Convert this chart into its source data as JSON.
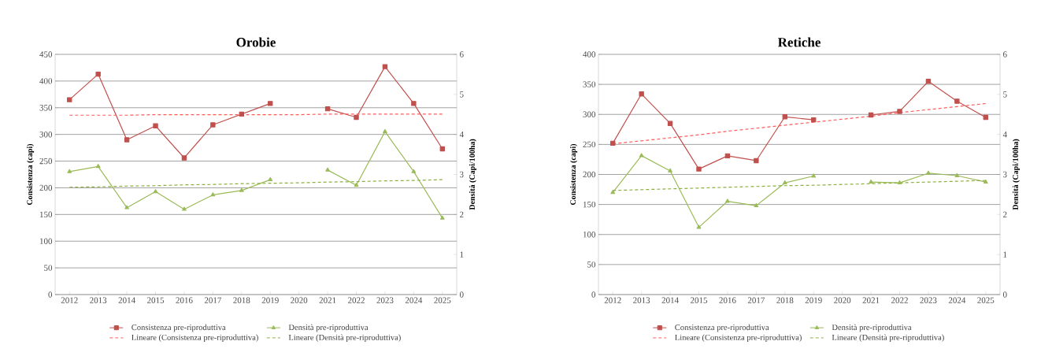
{
  "chart_data": [
    {
      "type": "line",
      "title": "Orobie",
      "ylabel": "Consistenza (capi)",
      "y2label": "Densità (Capi/100ha)",
      "x": [
        2012,
        2013,
        2014,
        2015,
        2016,
        2017,
        2018,
        2019,
        2020,
        2021,
        2022,
        2023,
        2024,
        2025
      ],
      "xlim": [
        2011.5,
        2025.5
      ],
      "xticks": [
        2012,
        2013,
        2014,
        2015,
        2016,
        2017,
        2018,
        2019,
        2020,
        2021,
        2022,
        2023,
        2024,
        2025
      ],
      "ylim": [
        0,
        450
      ],
      "yticks": [
        0,
        50,
        100,
        150,
        200,
        250,
        300,
        350,
        400,
        450
      ],
      "y2lim": [
        0,
        6
      ],
      "y2ticks": [
        0,
        1,
        2,
        3,
        4,
        5,
        6
      ],
      "grid": "y",
      "legend": "bottom",
      "series": [
        {
          "name": "Consistenza pre-riproduttiva",
          "color": "#c0504d",
          "marker": "square",
          "line_style": "solid",
          "values": [
            365,
            413,
            290,
            316,
            256,
            318,
            338,
            358,
            null,
            348,
            332,
            427,
            358,
            273
          ]
        },
        {
          "name": "Densità pre-riproduttiva",
          "color": "#9bbb59",
          "marker": "triangle",
          "line_style": "solid",
          "axis": "y2",
          "values": [
            3.07,
            3.2,
            2.17,
            2.57,
            2.13,
            2.49,
            2.6,
            2.87,
            null,
            3.11,
            2.73,
            4.07,
            3.07,
            1.91
          ]
        },
        {
          "name": "Lineare (Consistenza pre-riproduttiva)",
          "color": "#ff5b5b",
          "marker": "none",
          "line_style": "dashed",
          "values": [
            336,
            336,
            336,
            337,
            337,
            337,
            337,
            337,
            337,
            338,
            338,
            338,
            338,
            338
          ]
        },
        {
          "name": "Lineare (Densità pre-riproduttiva)",
          "color": "#8cb040",
          "marker": "none",
          "line_style": "dashed",
          "axis": "y2",
          "values": [
            2.68,
            2.69,
            2.71,
            2.72,
            2.74,
            2.75,
            2.77,
            2.78,
            2.79,
            2.81,
            2.82,
            2.84,
            2.85,
            2.87
          ]
        }
      ]
    },
    {
      "type": "line",
      "title": "Retiche",
      "ylabel": "Consistenza (capi)",
      "y2label": "Densità (Capi/100ha)",
      "x": [
        2012,
        2013,
        2014,
        2015,
        2016,
        2017,
        2018,
        2019,
        2020,
        2021,
        2022,
        2023,
        2024,
        2025
      ],
      "xlim": [
        2011.5,
        2025.5
      ],
      "xticks": [
        2012,
        2013,
        2014,
        2015,
        2016,
        2017,
        2018,
        2019,
        2020,
        2021,
        2022,
        2023,
        2024,
        2025
      ],
      "ylim": [
        0,
        400
      ],
      "yticks": [
        0,
        50,
        100,
        150,
        200,
        250,
        300,
        350,
        400
      ],
      "y2lim": [
        0,
        6
      ],
      "y2ticks": [
        0,
        1,
        2,
        3,
        4,
        5,
        6
      ],
      "grid": "y",
      "legend": "bottom",
      "series": [
        {
          "name": "Consistenza pre-riproduttiva",
          "color": "#c0504d",
          "marker": "square",
          "line_style": "solid",
          "values": [
            252,
            334,
            285,
            209,
            231,
            223,
            296,
            291,
            null,
            299,
            305,
            355,
            322,
            295
          ]
        },
        {
          "name": "Densità pre-riproduttiva",
          "color": "#9bbb59",
          "marker": "triangle",
          "line_style": "solid",
          "axis": "y2",
          "values": [
            2.55,
            3.47,
            3.09,
            1.68,
            2.33,
            2.22,
            2.79,
            2.96,
            null,
            2.81,
            2.79,
            3.03,
            2.97,
            2.81
          ]
        },
        {
          "name": "Lineare (Consistenza pre-riproduttiva)",
          "color": "#ff5b5b",
          "marker": "none",
          "line_style": "dashed",
          "values": [
            251,
            256,
            261,
            266,
            272,
            277,
            282,
            287,
            292,
            297,
            303,
            308,
            313,
            318
          ]
        },
        {
          "name": "Lineare (Densità pre-riproduttiva)",
          "color": "#8cb040",
          "marker": "none",
          "line_style": "dashed",
          "axis": "y2",
          "values": [
            2.6,
            2.62,
            2.64,
            2.66,
            2.68,
            2.7,
            2.72,
            2.73,
            2.75,
            2.77,
            2.79,
            2.81,
            2.83,
            2.85
          ]
        }
      ]
    }
  ]
}
